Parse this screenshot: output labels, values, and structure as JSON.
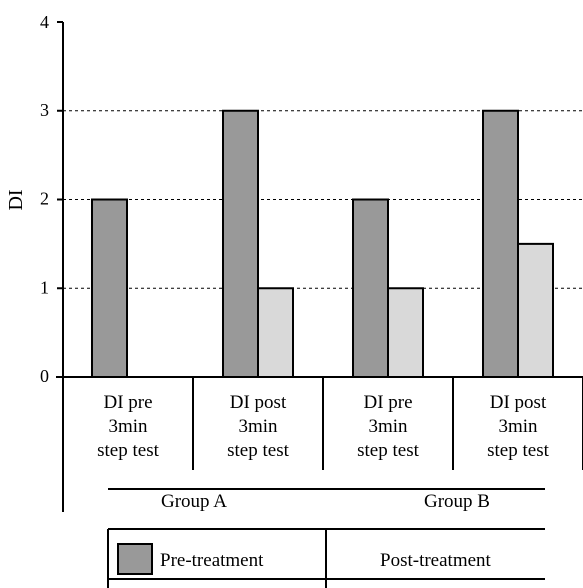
{
  "chart_data": {
    "type": "bar",
    "ylabel": "DI",
    "ylim": [
      0,
      4
    ],
    "yticks": [
      0,
      1,
      2,
      3,
      4
    ],
    "grid": "horizontal dashed",
    "categories": [
      [
        "DI pre",
        "3min",
        "step test"
      ],
      [
        "DI post",
        "3min",
        "step test"
      ],
      [
        "DI pre",
        "3min",
        "step test"
      ],
      [
        "DI post",
        "3min",
        "step test"
      ]
    ],
    "groups": [
      "Group A",
      "Group B"
    ],
    "series": [
      {
        "name": "Pre-treatment",
        "color": "#999999",
        "values": [
          2,
          3,
          2,
          3
        ]
      },
      {
        "name": "Post-treatment",
        "color": "#d9d9d9",
        "values": [
          0,
          1,
          1,
          1.5
        ]
      }
    ],
    "legend_position": "bottom"
  }
}
